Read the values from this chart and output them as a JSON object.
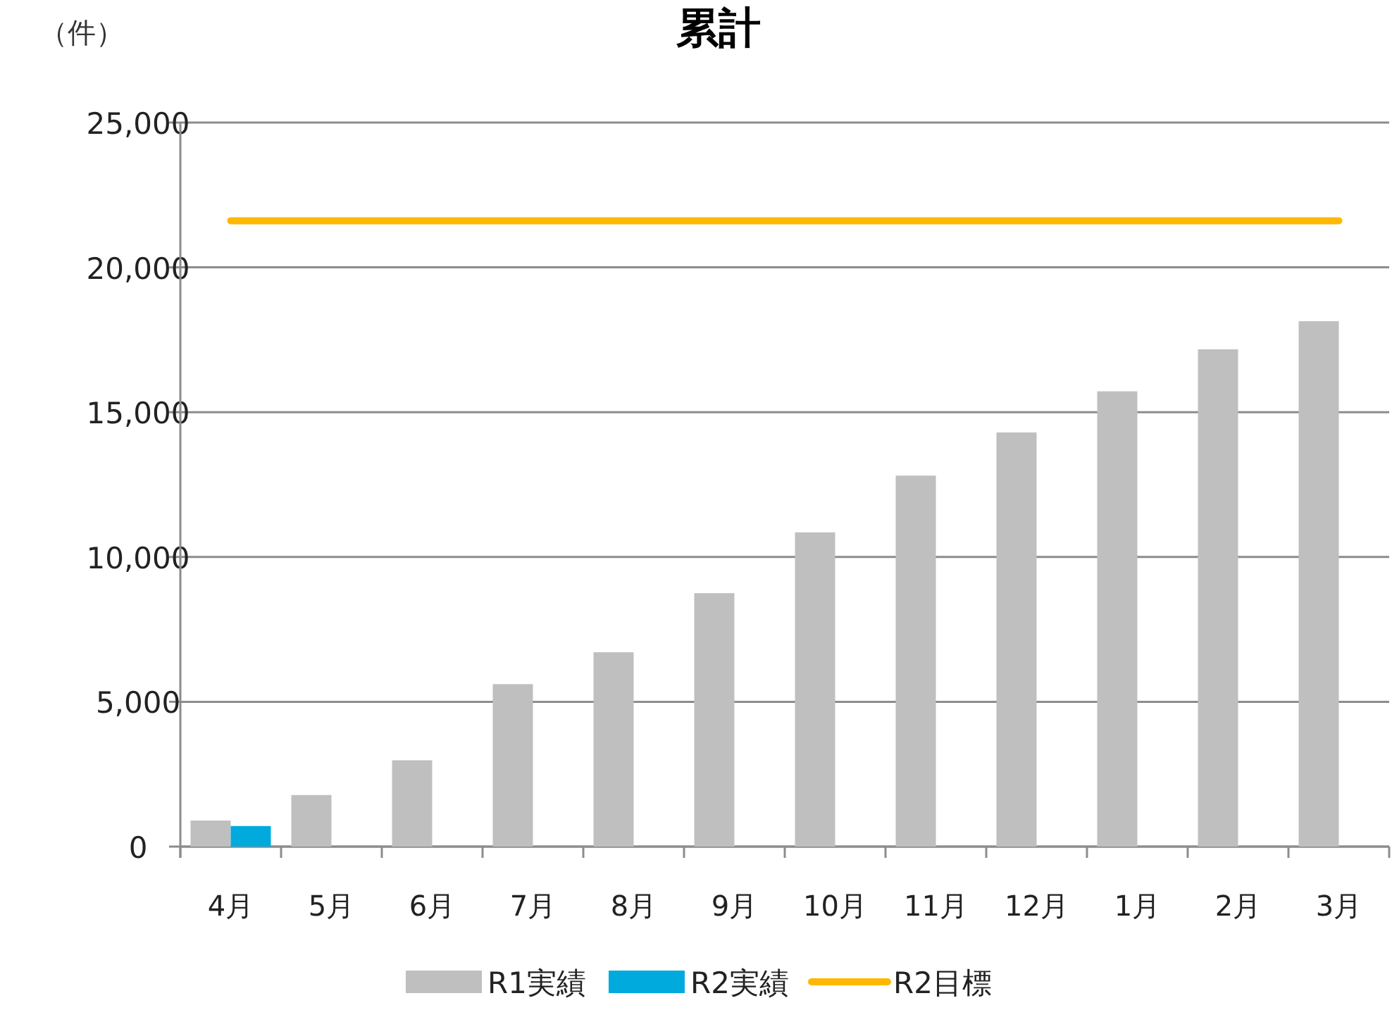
{
  "chart_data": {
    "type": "bar",
    "title": "累計",
    "ylabel": "（件）",
    "categories": [
      "4月",
      "5月",
      "6月",
      "7月",
      "8月",
      "9月",
      "10月",
      "11月",
      "12月",
      "1月",
      "2月",
      "3月"
    ],
    "series": [
      {
        "name": "R1実績",
        "color": "#bfbfbf",
        "values": [
          900,
          1780,
          2980,
          5610,
          6710,
          8750,
          10850,
          12810,
          14300,
          15720,
          17170,
          18140
        ]
      },
      {
        "name": "R2実績",
        "color": "#00aadd",
        "values": [
          710,
          null,
          null,
          null,
          null,
          null,
          null,
          null,
          null,
          null,
          null,
          null
        ]
      },
      {
        "name": "R2目標",
        "type": "line",
        "color": "#ffb800",
        "values": [
          21610,
          21610,
          21610,
          21610,
          21610,
          21610,
          21610,
          21610,
          21610,
          21610,
          21610,
          21610
        ]
      }
    ],
    "ylim": [
      0,
      25000
    ],
    "yticks": [
      0,
      {
        "value": 5000,
        "label": "5,000"
      },
      {
        "value": 10000,
        "label": "10,000"
      },
      {
        "value": 15000,
        "label": "15,000"
      },
      {
        "value": 20000,
        "label": "20,000"
      },
      {
        "value": 25000,
        "label": "25,000"
      }
    ],
    "grid": "y",
    "legend": "bottom"
  }
}
